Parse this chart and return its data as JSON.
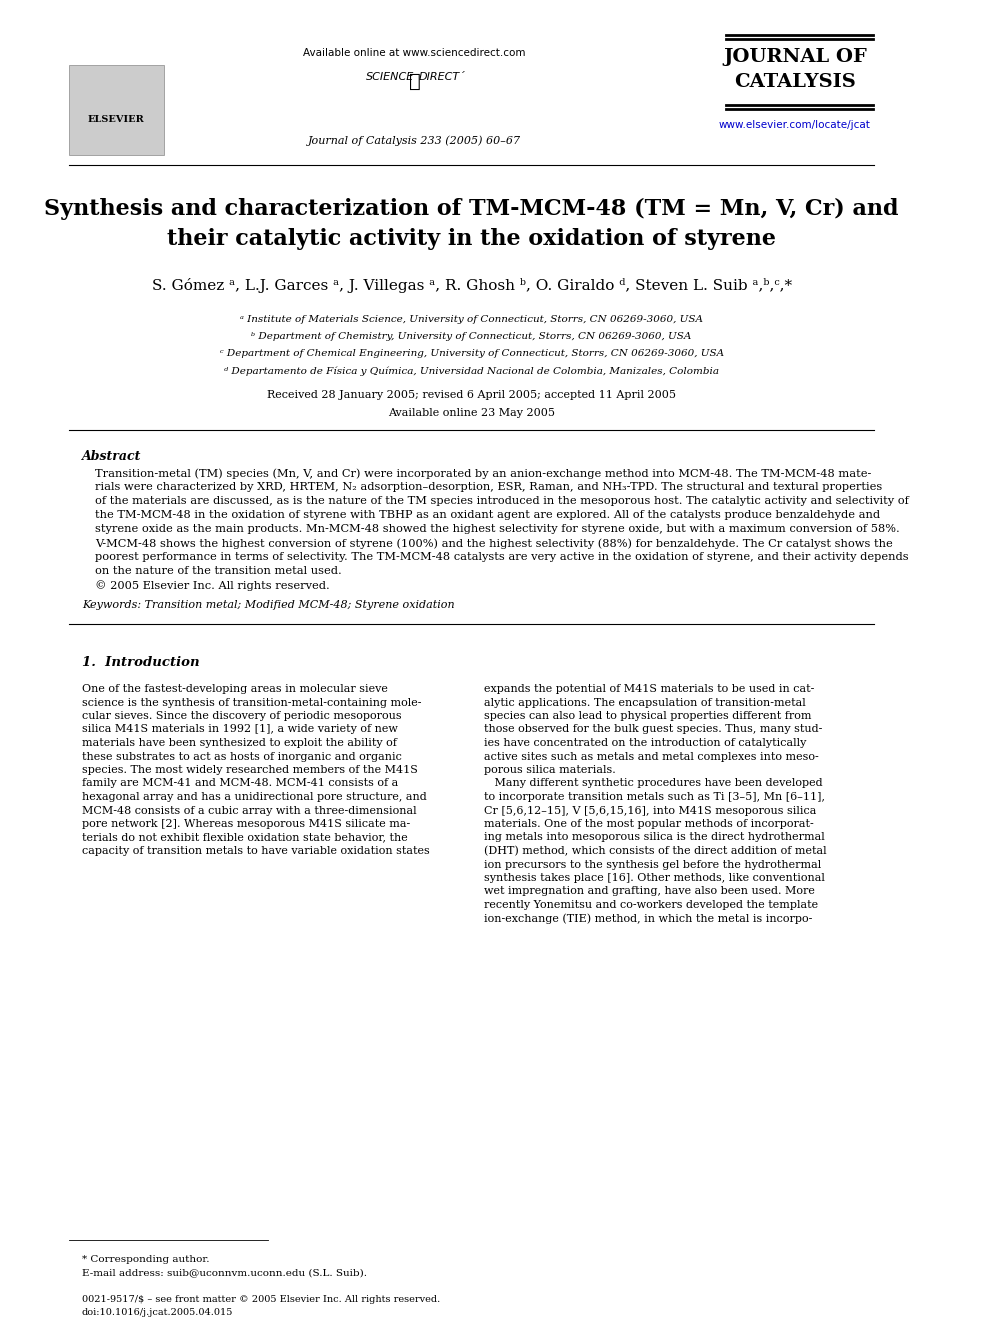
{
  "bg_color": "#ffffff",
  "header": {
    "available_online": "Available online at www.sciencedirect.com",
    "journal_name_line1": "JOURNAL OF",
    "journal_name_line2": "CATALYSIS",
    "journal_info": "Journal of Catalysis 233 (2005) 60–67",
    "website": "www.elsevier.com/locate/jcat",
    "elsevier_text": "ELSEVIER"
  },
  "title_line1": "Synthesis and characterization of TM-MCM-48 (TM = Mn, V, Cr) and",
  "title_line2": "their catalytic activity in the oxidation of styrene",
  "authors": "S. Gómez ᵃ, L.J. Garces ᵃ, J. Villegas ᵃ, R. Ghosh ᵇ, O. Giraldo ᵈ, Steven L. Suib ᵃ,ᵇ,ᶜ,*",
  "affiliations": [
    "ᵃ Institute of Materials Science, University of Connecticut, Storrs, CN 06269-3060, USA",
    "ᵇ Department of Chemistry, University of Connecticut, Storrs, CN 06269-3060, USA",
    "ᶜ Department of Chemical Engineering, University of Connecticut, Storrs, CN 06269-3060, USA",
    "ᵈ Departamento de Física y Química, Universidad Nacional de Colombia, Manizales, Colombia"
  ],
  "received": "Received 28 January 2005; revised 6 April 2005; accepted 11 April 2005",
  "available_online2": "Available online 23 May 2005",
  "abstract_title": "Abstract",
  "abstract_text": "Transition-metal (TM) species (Mn, V, and Cr) were incorporated by an anion-exchange method into MCM-48. The TM-MCM-48 mate-\nrials were characterized by XRD, HRTEM, N₂ adsorption–desorption, ESR, Raman, and NH₃-TPD. The structural and textural properties\nof the materials are discussed, as is the nature of the TM species introduced in the mesoporous host. The catalytic activity and selectivity of\nthe TM-MCM-48 in the oxidation of styrene with TBHP as an oxidant agent are explored. All of the catalysts produce benzaldehyde and\nstyrene oxide as the main products. Mn-MCM-48 showed the highest selectivity for styrene oxide, but with a maximum conversion of 58%.\nV-MCM-48 shows the highest conversion of styrene (100%) and the highest selectivity (88%) for benzaldehyde. The Cr catalyst shows the\npoorest performance in terms of selectivity. The TM-MCM-48 catalysts are very active in the oxidation of styrene, and their activity depends\non the nature of the transition metal used.\n© 2005 Elsevier Inc. All rights reserved.",
  "keywords": "Keywords: Transition metal; Modified MCM-48; Styrene oxidation",
  "section1_title": "1.  Introduction",
  "intro_col1": "One of the fastest-developing areas in molecular sieve\nscience is the synthesis of transition-metal-containing mole-\ncular sieves. Since the discovery of periodic mesoporous\nsilica M41S materials in 1992 [1], a wide variety of new\nmaterials have been synthesized to exploit the ability of\nthese substrates to act as hosts of inorganic and organic\nspecies. The most widely researched members of the M41S\nfamily are MCM-41 and MCM-48. MCM-41 consists of a\nhexagonal array and has a unidirectional pore structure, and\nMCM-48 consists of a cubic array with a three-dimensional\npore network [2]. Whereas mesoporous M41S silicate ma-\nterials do not exhibit flexible oxidation state behavior, the\ncapacity of transition metals to have variable oxidation states",
  "intro_col2": "expands the potential of M41S materials to be used in cat-\nalytic applications. The encapsulation of transition-metal\nspecies can also lead to physical properties different from\nthose observed for the bulk guest species. Thus, many stud-\nies have concentrated on the introduction of catalytically\nactive sites such as metals and metal complexes into meso-\nporous silica materials.\n   Many different synthetic procedures have been developed\nto incorporate transition metals such as Ti [3–5], Mn [6–11],\nCr [5,6,12–15], V [5,6,15,16], into M41S mesoporous silica\nmaterials. One of the most popular methods of incorporat-\ning metals into mesoporous silica is the direct hydrothermal\n(DHT) method, which consists of the direct addition of metal\nion precursors to the synthesis gel before the hydrothermal\nsynthesis takes place [16]. Other methods, like conventional\nwet impregnation and grafting, have also been used. More\nrecently Yonemitsu and co-workers developed the template\nion-exchange (TIE) method, in which the metal is incorpo-",
  "footnote_star": "* Corresponding author.",
  "footnote_email": "E-mail address: suib@uconnvm.uconn.edu (S.L. Suib).",
  "footer_left": "0021-9517/$ – see front matter © 2005 Elsevier Inc. All rights reserved.",
  "footer_doi": "doi:10.1016/j.jcat.2005.04.015"
}
